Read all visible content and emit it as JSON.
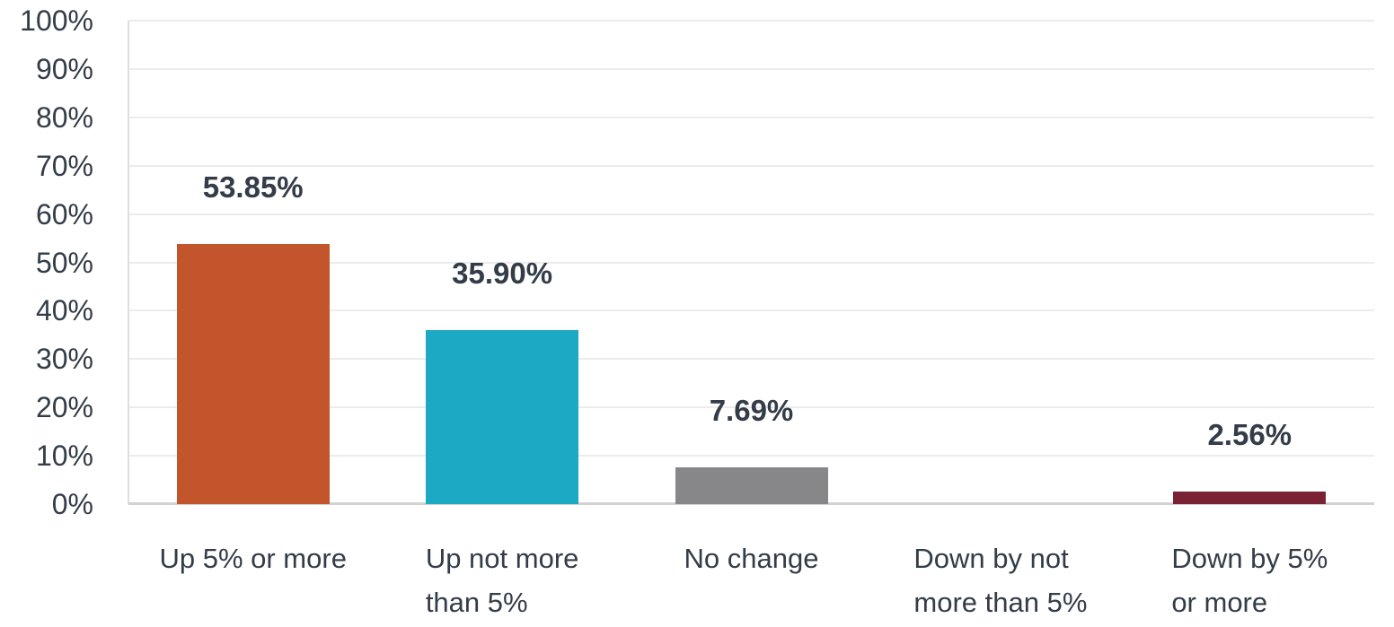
{
  "chart_data": {
    "type": "bar",
    "title": "",
    "xlabel": "",
    "ylabel": "",
    "categories": [
      "Up 5% or more",
      "Up not more\nthan 5%",
      "No change",
      "Down by not\nmore than 5%",
      "Down by 5%\nor more"
    ],
    "values": [
      53.85,
      35.9,
      7.69,
      0,
      2.56
    ],
    "data_labels": [
      "53.85%",
      "35.90%",
      "7.69%",
      null,
      "2.56%"
    ],
    "bar_colors": [
      "#C2552B",
      "#1CA9C4",
      "#87878A",
      null,
      "#7A2233"
    ],
    "ylim": [
      0,
      100
    ],
    "y_tick_values": [
      0,
      10,
      20,
      30,
      40,
      50,
      60,
      70,
      80,
      90,
      100
    ],
    "y_tick_labels": [
      "0%",
      "10%",
      "20%",
      "30%",
      "40%",
      "50%",
      "60%",
      "70%",
      "80%",
      "90%",
      "100%"
    ],
    "grid": true,
    "legend": false
  },
  "style": {
    "background": "#FFFFFF",
    "text_color": "#333C48",
    "gridline_color": "#ECECEC",
    "axis_line_color": "#DEDEDE",
    "baseline_color": "#D2D2D2"
  }
}
